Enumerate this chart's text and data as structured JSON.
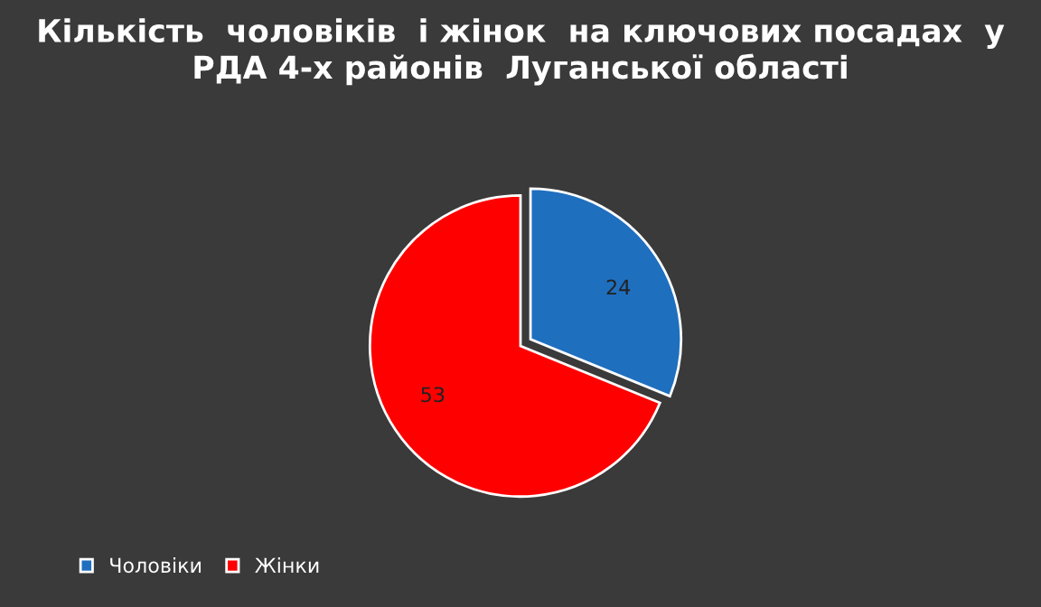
{
  "chart_data": {
    "type": "pie",
    "title": "Кількість  чоловіків  і жінок  на ключових посадах  у РДА 4-х районів  Луганської області",
    "categories": [
      "Чоловіки",
      "Жінки"
    ],
    "values": [
      24,
      53
    ],
    "colors": [
      "#1f6fbf",
      "#ff0000"
    ],
    "data_labels": true,
    "legend": "bottom left"
  }
}
